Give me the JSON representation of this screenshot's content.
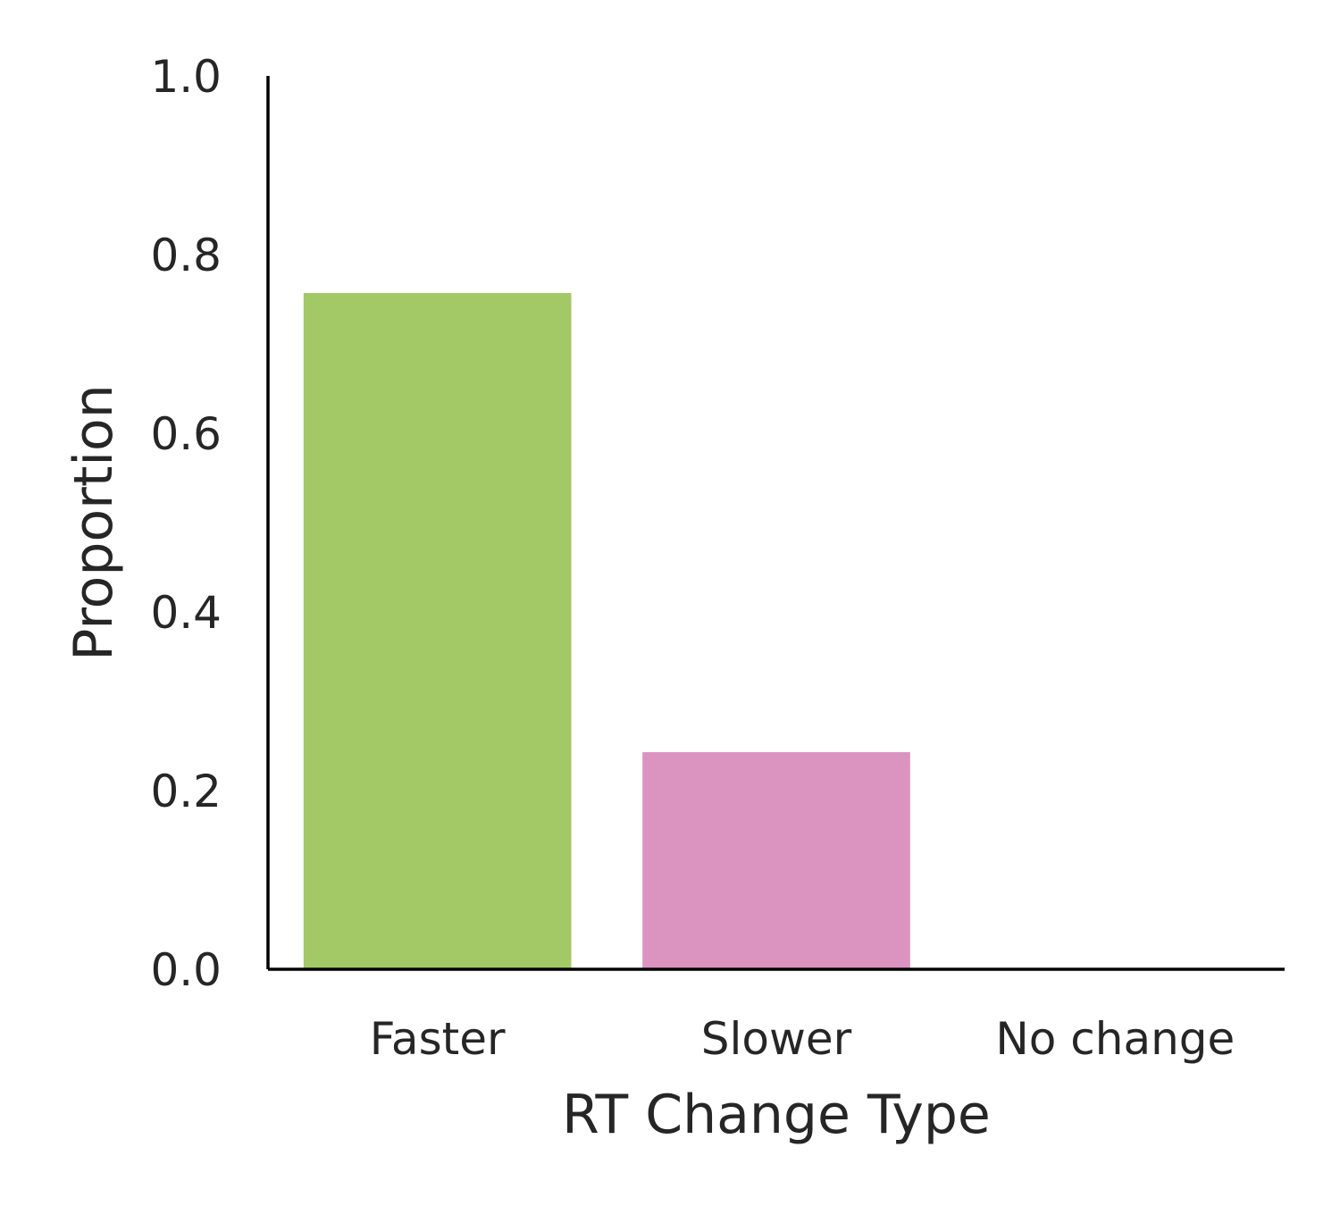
{
  "chart_data": {
    "type": "bar",
    "categories": [
      "Faster",
      "Slower",
      "No change"
    ],
    "values": [
      0.757,
      0.243,
      0.0
    ],
    "colors": [
      "#a3c966",
      "#db94bf",
      "#8da0cb"
    ],
    "title": "",
    "xlabel": "RT Change Type",
    "ylabel": "Proportion",
    "ylim": [
      0,
      1.0
    ],
    "yticks": [
      "0.0",
      "0.2",
      "0.4",
      "0.6",
      "0.8",
      "1.0"
    ],
    "grid": false,
    "legend": "none"
  }
}
